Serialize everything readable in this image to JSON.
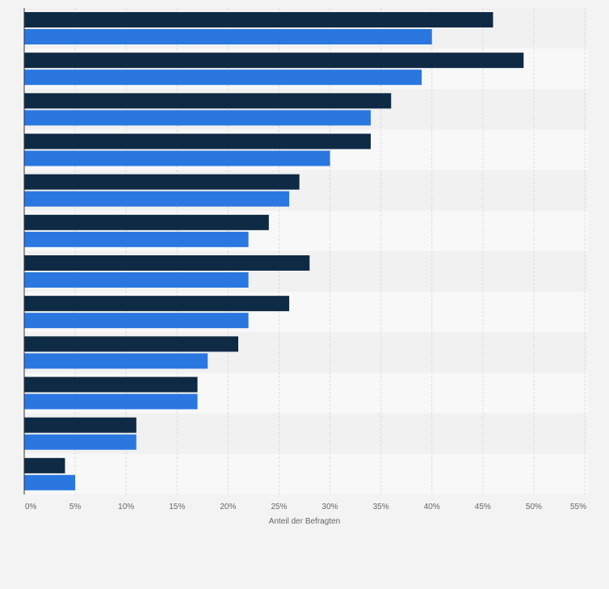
{
  "chart_data": {
    "type": "bar",
    "orientation": "horizontal",
    "title": "",
    "xlabel": "Anteil der Befragten",
    "ylabel": "",
    "xlim": [
      0,
      55
    ],
    "xticks": [
      {
        "value": 0,
        "label": "0%"
      },
      {
        "value": 5,
        "label": "5%"
      },
      {
        "value": 10,
        "label": "10%"
      },
      {
        "value": 15,
        "label": "15%"
      },
      {
        "value": 20,
        "label": "20%"
      },
      {
        "value": 25,
        "label": "25%"
      },
      {
        "value": 30,
        "label": "30%"
      },
      {
        "value": 35,
        "label": "35%"
      },
      {
        "value": 40,
        "label": "40%"
      },
      {
        "value": 45,
        "label": "45%"
      },
      {
        "value": 50,
        "label": "50%"
      },
      {
        "value": 55,
        "label": "55%"
      }
    ],
    "grid": true,
    "legend": "none",
    "series": [
      {
        "color": "#0f2a45",
        "values": [
          46,
          49,
          36,
          34,
          27,
          24,
          28,
          26,
          21,
          17,
          11,
          4
        ]
      },
      {
        "color": "#2a77e0",
        "values": [
          40,
          39,
          34,
          30,
          26,
          22,
          22,
          22,
          18,
          17,
          11,
          5
        ]
      }
    ],
    "colors": {
      "background": "#f3f3f3",
      "band_light": "#f8f8f8",
      "band_dark": "#f1f1f1",
      "grid": "#dcdcdc",
      "axis": "#333333"
    }
  }
}
